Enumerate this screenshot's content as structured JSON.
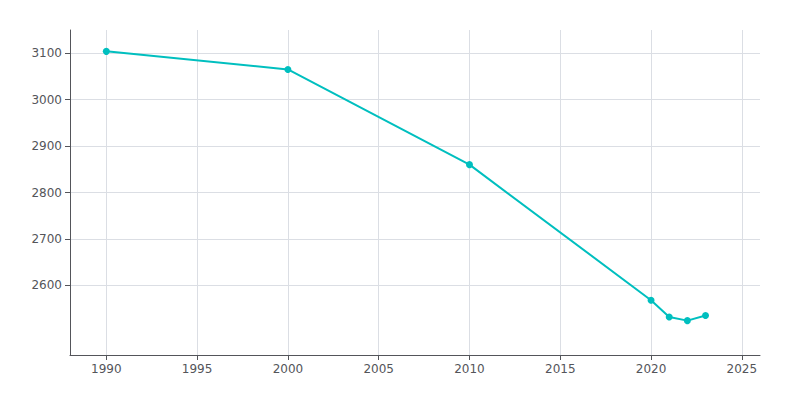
{
  "chart_data": {
    "type": "line",
    "x": [
      1990,
      2000,
      2010,
      2020,
      2021,
      2022,
      2023
    ],
    "values": [
      3104,
      3065,
      2860,
      2568,
      2532,
      2524,
      2535
    ],
    "color": "#00BFBF",
    "marker": "circle",
    "xlim": [
      1988,
      2026
    ],
    "ylim": [
      2450,
      3150
    ],
    "xticks": [
      1990,
      1995,
      2000,
      2005,
      2010,
      2015,
      2020,
      2025
    ],
    "yticks": [
      2600,
      2700,
      2800,
      2900,
      3000,
      3100
    ],
    "grid": true
  }
}
